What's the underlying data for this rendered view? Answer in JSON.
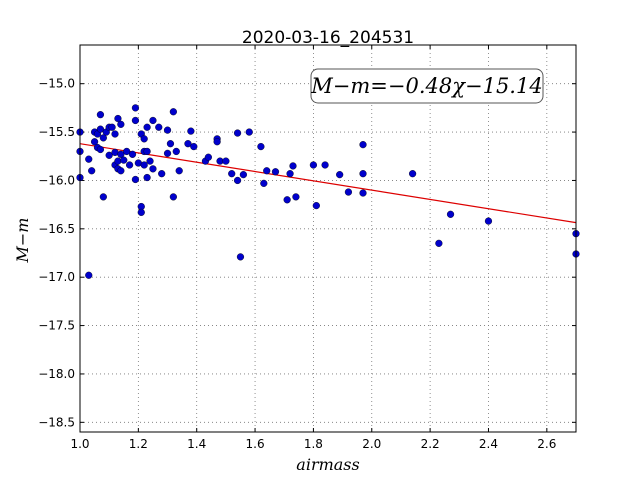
{
  "chart_data": {
    "type": "scatter",
    "title": "2020-03-16_204531",
    "xlabel": "airmass",
    "ylabel": "M−m",
    "xlim": [
      1.0,
      2.7
    ],
    "ylim": [
      -18.6,
      -14.6
    ],
    "x_ticks": [
      "1.0",
      "1.2",
      "1.4",
      "1.6",
      "1.8",
      "2.0",
      "2.2",
      "2.4",
      "2.6"
    ],
    "y_ticks": [
      "−15.0",
      "−15.5",
      "−16.0",
      "−16.5",
      "−17.0",
      "−17.5",
      "−18.0",
      "−18.5"
    ],
    "grid": true,
    "annotation": "M−m=−0.48χ−15.14",
    "fit": {
      "slope": -0.48,
      "intercept": -15.14,
      "color": "#dd0000"
    },
    "marker_color": "#0000cc",
    "points": [
      [
        1.0,
        -15.5
      ],
      [
        1.0,
        -15.7
      ],
      [
        1.0,
        -15.97
      ],
      [
        1.03,
        -15.78
      ],
      [
        1.04,
        -15.9
      ],
      [
        1.03,
        -16.98
      ],
      [
        1.05,
        -15.5
      ],
      [
        1.05,
        -15.6
      ],
      [
        1.06,
        -15.52
      ],
      [
        1.06,
        -15.66
      ],
      [
        1.07,
        -15.32
      ],
      [
        1.07,
        -15.47
      ],
      [
        1.07,
        -15.68
      ],
      [
        1.08,
        -15.56
      ],
      [
        1.08,
        -16.17
      ],
      [
        1.09,
        -15.5
      ],
      [
        1.1,
        -15.45
      ],
      [
        1.1,
        -15.74
      ],
      [
        1.11,
        -15.45
      ],
      [
        1.12,
        -15.71
      ],
      [
        1.12,
        -15.84
      ],
      [
        1.12,
        -15.52
      ],
      [
        1.13,
        -15.36
      ],
      [
        1.13,
        -15.8
      ],
      [
        1.13,
        -15.88
      ],
      [
        1.14,
        -15.42
      ],
      [
        1.14,
        -15.73
      ],
      [
        1.14,
        -15.9
      ],
      [
        1.15,
        -15.79
      ],
      [
        1.16,
        -15.7
      ],
      [
        1.17,
        -15.84
      ],
      [
        1.18,
        -15.73
      ],
      [
        1.19,
        -15.25
      ],
      [
        1.19,
        -15.38
      ],
      [
        1.19,
        -15.99
      ],
      [
        1.2,
        -15.82
      ],
      [
        1.21,
        -15.52
      ],
      [
        1.21,
        -16.27
      ],
      [
        1.21,
        -16.33
      ],
      [
        1.22,
        -15.7
      ],
      [
        1.22,
        -15.84
      ],
      [
        1.22,
        -15.57
      ],
      [
        1.23,
        -15.45
      ],
      [
        1.23,
        -15.7
      ],
      [
        1.23,
        -15.97
      ],
      [
        1.24,
        -15.8
      ],
      [
        1.25,
        -15.38
      ],
      [
        1.25,
        -15.88
      ],
      [
        1.27,
        -15.45
      ],
      [
        1.28,
        -15.93
      ],
      [
        1.3,
        -15.48
      ],
      [
        1.3,
        -15.72
      ],
      [
        1.31,
        -15.62
      ],
      [
        1.32,
        -16.17
      ],
      [
        1.32,
        -15.29
      ],
      [
        1.33,
        -15.7
      ],
      [
        1.34,
        -15.9
      ],
      [
        1.37,
        -15.62
      ],
      [
        1.38,
        -15.49
      ],
      [
        1.39,
        -15.65
      ],
      [
        1.43,
        -15.8
      ],
      [
        1.44,
        -15.76
      ],
      [
        1.47,
        -15.57
      ],
      [
        1.47,
        -15.6
      ],
      [
        1.48,
        -15.8
      ],
      [
        1.5,
        -15.8
      ],
      [
        1.52,
        -15.93
      ],
      [
        1.54,
        -15.51
      ],
      [
        1.54,
        -16.0
      ],
      [
        1.55,
        -16.79
      ],
      [
        1.56,
        -15.94
      ],
      [
        1.58,
        -15.5
      ],
      [
        1.62,
        -15.65
      ],
      [
        1.63,
        -16.03
      ],
      [
        1.64,
        -15.9
      ],
      [
        1.67,
        -15.91
      ],
      [
        1.71,
        -16.2
      ],
      [
        1.72,
        -15.93
      ],
      [
        1.73,
        -15.85
      ],
      [
        1.74,
        -16.17
      ],
      [
        1.8,
        -15.84
      ],
      [
        1.81,
        -16.26
      ],
      [
        1.84,
        -15.84
      ],
      [
        1.89,
        -15.94
      ],
      [
        1.92,
        -16.12
      ],
      [
        1.97,
        -15.63
      ],
      [
        1.97,
        -15.93
      ],
      [
        1.97,
        -16.13
      ],
      [
        2.14,
        -15.93
      ],
      [
        2.23,
        -16.65
      ],
      [
        2.27,
        -16.35
      ],
      [
        2.4,
        -16.42
      ],
      [
        2.7,
        -16.55
      ],
      [
        2.7,
        -16.76
      ]
    ]
  }
}
